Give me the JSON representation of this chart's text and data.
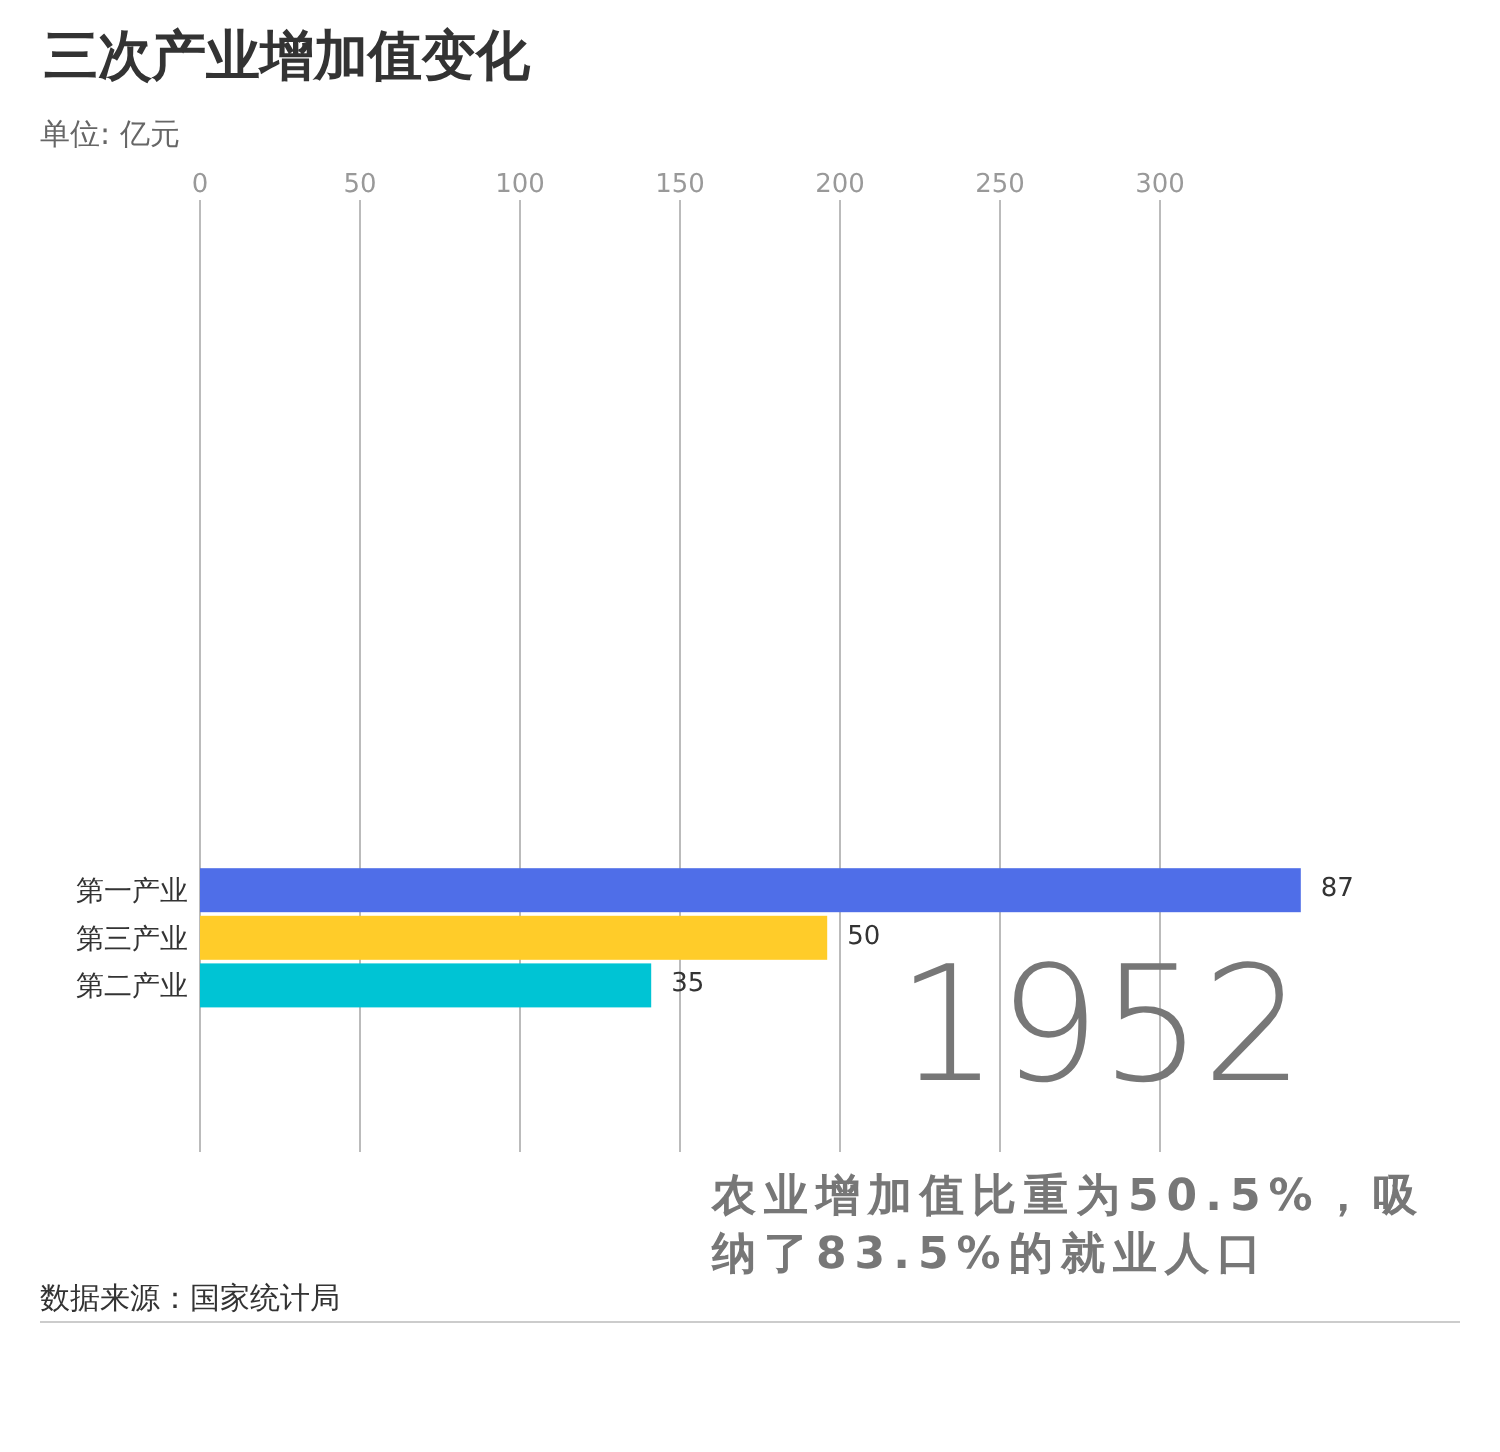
{
  "chart_data": {
    "type": "bar",
    "orientation": "horizontal",
    "title": "三次产业增加值变化",
    "subtitle": "单位: 亿元",
    "categories": [
      null,
      null,
      null,
      null,
      null,
      null,
      null,
      null,
      null,
      null,
      null,
      null,
      null,
      null,
      "第一产业",
      "第三产业",
      "第二产业",
      null,
      null,
      null
    ],
    "values": [
      null,
      null,
      null,
      null,
      null,
      null,
      null,
      null,
      null,
      null,
      null,
      null,
      null,
      null,
      344,
      196,
      141,
      null,
      null,
      null
    ],
    "colors": [
      null,
      null,
      null,
      null,
      null,
      null,
      null,
      null,
      null,
      null,
      null,
      null,
      null,
      null,
      "#4f6ee8",
      "#ffcc29",
      "#00c4d4",
      null,
      null,
      null
    ],
    "xlim": [
      0,
      345
    ],
    "xticks": [
      0,
      50,
      100,
      150,
      200,
      250,
      300
    ],
    "grid": "x",
    "legend": false,
    "annotations": [
      {
        "text": "87",
        "x": 344,
        "y": "第一产业"
      },
      {
        "text": "50",
        "x": 196,
        "y": "第三产业"
      },
      {
        "text": "35",
        "x": 141,
        "y": "第二产业"
      },
      "1952",
      "农业增加值比重为50.5%，吸纳了83.5%的就业人口",
      "数据来源：国家统计局"
    ]
  }
}
